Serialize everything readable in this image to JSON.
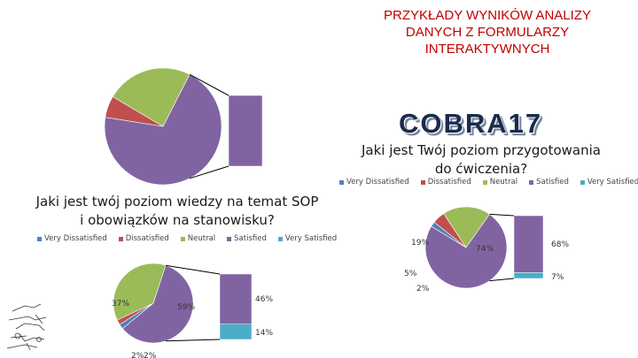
{
  "slide": {
    "title": "PRZYKŁADY WYNIKÓW ANALIZY DANYCH Z FORMULARZY INTERAKTYWNYCH",
    "title_lines": [
      "PRZYKŁADY WYNIKÓW ANALIZY",
      "DANYCH Z FORMULARZY",
      "INTERAKTYWNYCH"
    ],
    "logo_text": "COBRA17",
    "title_color": "#c00000"
  },
  "chart_data": [
    {
      "type": "pie",
      "title": "Jaki jest Twój poziom przygotowania do ćwiczenia?",
      "title_lines": [
        "Jaki jest Twój poziom przygotowania",
        "do ćwiczenia?"
      ],
      "legend": [
        "Very Dissatisfied",
        "Dissatisfied",
        "Neutral",
        "Satisfied",
        "Very Satisfied"
      ],
      "legend_position": "top",
      "colors": {
        "Very Dissatisfied": "#4f81bd",
        "Dissatisfied": "#c0504d",
        "Neutral": "#9bbb59",
        "Satisfied": "#8064a2",
        "Very Satisfied": "#4bacc6"
      },
      "pie": [
        {
          "category": "Satisfied",
          "label": "74%",
          "value": 74
        },
        {
          "category": "Very Dissatisfied",
          "label": "2%",
          "value": 2
        },
        {
          "category": "Dissatisfied",
          "label": "5%",
          "value": 5
        },
        {
          "category": "Neutral",
          "label": "19%",
          "value": 19
        }
      ],
      "breakout": [
        {
          "category": "Satisfied",
          "label": "68%",
          "value": 68
        },
        {
          "category": "Very Satisfied",
          "label": "7%",
          "value": 7
        }
      ]
    },
    {
      "type": "pie",
      "title": "Jaki jest twój poziom wiedzy na temat SOP i obowiązków na stanowisku?",
      "title_lines": [
        "Jaki jest twój poziom wiedzy na temat SOP",
        "i obowiązków na stanowisku?"
      ],
      "legend": [
        "Very Dissatisfied",
        "Dissatisfied",
        "Neutral",
        "Satisfied",
        "Very Satisfied"
      ],
      "legend_position": "top",
      "colors": {
        "Very Dissatisfied": "#4f81bd",
        "Dissatisfied": "#c0504d",
        "Neutral": "#9bbb59",
        "Satisfied": "#8064a2",
        "Very Satisfied": "#4bacc6"
      },
      "pie": [
        {
          "category": "Satisfied",
          "label": "59%",
          "value": 59
        },
        {
          "category": "Very Dissatisfied",
          "label": "2%",
          "value": 2
        },
        {
          "category": "Dissatisfied",
          "label": "2%",
          "value": 2
        },
        {
          "category": "Neutral",
          "label": "37%",
          "value": 37
        }
      ],
      "breakout": [
        {
          "category": "Satisfied",
          "label": "46%",
          "value": 46
        },
        {
          "category": "Very Satisfied",
          "label": "14%",
          "value": 14
        }
      ]
    }
  ],
  "top_decor_chart": {
    "slices": [
      {
        "category": "Satisfied",
        "value": 70
      },
      {
        "category": "Dissatisfied",
        "value": 6
      },
      {
        "category": "Neutral",
        "value": 24
      }
    ],
    "breakout": [
      {
        "category": "Satisfied",
        "value": 100
      }
    ]
  }
}
